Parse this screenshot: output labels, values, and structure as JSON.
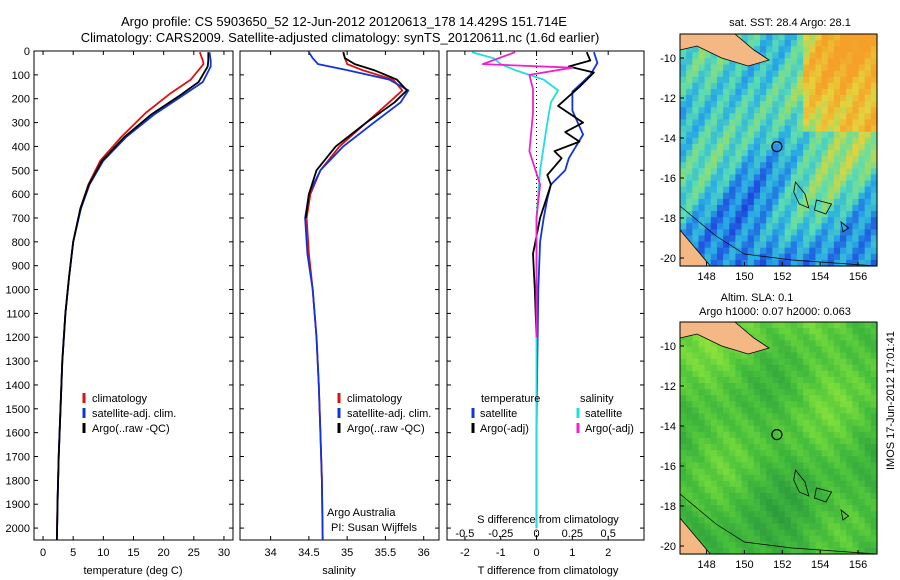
{
  "header": {
    "line1": "Argo profile: CS 5903650_52 12-Jun-2012 20120613_178 14.429S 151.714E",
    "line2": "Climatology: CARS2009. Satellite-adjusted climatology: synTS_20120611.nc (1.6d earlier)"
  },
  "colors": {
    "climatology": "#dd1111",
    "satellite": "#1133dd",
    "argo": "#000000",
    "salinity_satellite": "#22dddd",
    "salinity_argo": "#ee22cc"
  },
  "chart_data": [
    {
      "type": "line",
      "name": "temperature-profile",
      "xlabel": "temperature (deg C)",
      "ylabel": "",
      "xlim": [
        -1.5,
        31.5
      ],
      "ylim": [
        2050,
        0
      ],
      "xticks": [
        0,
        5,
        10,
        15,
        20,
        25,
        30
      ],
      "yticks": [
        0,
        100,
        200,
        300,
        400,
        500,
        600,
        700,
        800,
        900,
        1000,
        1100,
        1200,
        1300,
        1400,
        1500,
        1600,
        1700,
        1800,
        1900,
        2000
      ],
      "legend_position": "lower-left",
      "series": [
        {
          "name": "climatology",
          "color": "#dd1111",
          "x": [
            26.0,
            26.5,
            26.6,
            24.5,
            21.0,
            17.0,
            13.0,
            9.5,
            7.5,
            6.2,
            5.0,
            4.3,
            3.7,
            3.2,
            2.9,
            2.6,
            2.4,
            2.3
          ],
          "y": [
            5,
            40,
            55,
            120,
            180,
            260,
            360,
            460,
            560,
            660,
            800,
            950,
            1100,
            1300,
            1500,
            1700,
            1900,
            2050
          ]
        },
        {
          "name": "satellite-adj. clim.",
          "color": "#1133dd",
          "x": [
            27.6,
            27.8,
            27.8,
            26.5,
            23.0,
            18.5,
            13.8,
            10.0,
            7.7,
            6.3,
            5.0,
            4.3,
            3.7,
            3.2,
            2.9,
            2.6,
            2.4,
            2.3
          ],
          "y": [
            5,
            40,
            65,
            130,
            190,
            265,
            360,
            460,
            560,
            660,
            800,
            950,
            1100,
            1300,
            1500,
            1700,
            1900,
            2050
          ]
        },
        {
          "name": "Argo(..raw -QC)",
          "color": "#000000",
          "x": [
            27.4,
            27.4,
            27.3,
            25.8,
            22.5,
            18.0,
            13.5,
            9.8,
            7.6,
            6.2,
            5.0,
            4.3,
            3.7,
            3.2,
            2.9,
            2.6,
            2.4,
            2.3
          ],
          "y": [
            5,
            40,
            65,
            130,
            190,
            265,
            360,
            460,
            560,
            660,
            800,
            950,
            1100,
            1300,
            1500,
            1700,
            1900,
            2050
          ]
        }
      ],
      "legend": [
        "climatology",
        "satellite-adj. clim.",
        "Argo(..raw -QC)"
      ]
    },
    {
      "type": "line",
      "name": "salinity-profile",
      "xlabel": "salinity",
      "xlim": [
        33.6,
        36.2
      ],
      "ylim": [
        2050,
        0
      ],
      "xticks": [
        34,
        34.5,
        35,
        35.5,
        36
      ],
      "legend_position": "lower-right",
      "annotations": [
        "Argo Australia",
        "PI: Susan Wijffels"
      ],
      "series": [
        {
          "name": "climatology",
          "color": "#dd1111",
          "x": [
            34.95,
            34.97,
            35.0,
            35.2,
            35.6,
            35.72,
            35.55,
            35.25,
            34.9,
            34.65,
            34.52,
            34.47,
            34.5,
            34.55,
            34.6,
            34.63,
            34.65,
            34.67,
            34.68
          ],
          "y": [
            5,
            30,
            55,
            80,
            120,
            165,
            215,
            300,
            400,
            500,
            600,
            700,
            850,
            1000,
            1200,
            1400,
            1600,
            1800,
            2050
          ]
        },
        {
          "name": "satellite-adj. clim.",
          "color": "#1133dd",
          "x": [
            34.5,
            34.55,
            34.62,
            35.0,
            35.55,
            35.8,
            35.7,
            35.35,
            34.95,
            34.65,
            34.5,
            34.45,
            34.48,
            34.55,
            34.6,
            34.63,
            34.65,
            34.67,
            34.68
          ],
          "y": [
            5,
            30,
            55,
            80,
            120,
            165,
            215,
            300,
            400,
            500,
            600,
            700,
            850,
            1000,
            1200,
            1400,
            1600,
            1800,
            2050
          ]
        },
        {
          "name": "Argo(..raw -QC)",
          "color": "#000000",
          "x": [
            34.95,
            34.97,
            35.1,
            35.35,
            35.65,
            35.78,
            35.62,
            35.25,
            34.85,
            34.6,
            34.5,
            34.46
          ],
          "y": [
            5,
            30,
            55,
            80,
            120,
            165,
            215,
            300,
            400,
            500,
            600,
            700
          ]
        }
      ],
      "legend": [
        "climatology",
        "satellite-adj. clim.",
        "Argo(..raw -QC)"
      ]
    },
    {
      "type": "line",
      "name": "difference-profile",
      "xlabel": "T difference from climatology",
      "xlabel_top": "S difference from climatology",
      "xlim": [
        -2.5,
        3.0
      ],
      "ylim": [
        2050,
        0
      ],
      "xticks": [
        -2,
        -1,
        0,
        1,
        2
      ],
      "xticks_top": [
        "-0.5",
        "-0.25",
        "0",
        "0.25",
        "0.5"
      ],
      "xticks_top_values": [
        -2,
        -1,
        0,
        1,
        2
      ],
      "legend_position": "lower-center",
      "legend_temperature_title": "temperature",
      "legend_salinity_title": "salinity",
      "series": [
        {
          "name": "satellite",
          "group": "temperature",
          "color": "#1133dd",
          "x": [
            1.6,
            1.7,
            1.5,
            1.0,
            1.0,
            1.3,
            0.9,
            0.8,
            0.4,
            0.3,
            0.2,
            0.1,
            0.05,
            0.02,
            0.0,
            0.0
          ],
          "y": [
            5,
            50,
            100,
            170,
            250,
            350,
            450,
            500,
            560,
            620,
            700,
            800,
            1000,
            1300,
            1600,
            2000
          ]
        },
        {
          "name": "Argo(-adj)",
          "group": "temperature",
          "color": "#000000",
          "x": [
            1.4,
            1.5,
            0.9,
            1.6,
            1.2,
            0.6,
            1.3,
            0.8,
            1.2,
            0.5,
            0.7,
            0.3,
            0.4,
            0.1,
            -0.1,
            -0.05,
            0.0
          ],
          "y": [
            5,
            40,
            65,
            90,
            150,
            230,
            300,
            340,
            380,
            420,
            450,
            520,
            560,
            700,
            850,
            1000,
            1200
          ]
        },
        {
          "name": "satellite",
          "group": "salinity",
          "color": "#22dddd",
          "x": [
            -1.8,
            -1.2,
            -1.0,
            -0.6,
            0.2,
            0.6,
            0.4,
            0.3,
            0.1,
            0.0,
            0.0,
            0.0,
            0.0
          ],
          "y": [
            5,
            30,
            55,
            80,
            120,
            165,
            215,
            300,
            500,
            700,
            1000,
            1500,
            2000
          ]
        },
        {
          "name": "Argo(-adj)",
          "group": "salinity",
          "color": "#ee22cc",
          "x": [
            -0.6,
            -1.5,
            1.0,
            -0.2,
            -0.1,
            -0.1,
            -0.2,
            0.1,
            0.0,
            0.0,
            0.0
          ],
          "y": [
            5,
            55,
            70,
            100,
            160,
            260,
            420,
            560,
            700,
            900,
            1200
          ]
        }
      ],
      "legend": [
        "satellite",
        "Argo(-adj)",
        "satellite",
        "Argo(-adj)"
      ]
    },
    {
      "type": "heatmap",
      "name": "sst-map",
      "title": "sat. SST: 28.4 Argo: 28.1",
      "xticks": [
        148,
        150,
        152,
        154,
        156
      ],
      "yticks": [
        -10,
        -12,
        -14,
        -16,
        -18,
        -20
      ],
      "xlim": [
        146.6,
        157.0
      ],
      "ylim": [
        -20.4,
        -8.8
      ],
      "marker_lon": 151.714,
      "marker_lat": -14.429
    },
    {
      "type": "heatmap",
      "name": "sla-map",
      "title_line1": "Altim. SLA: 0.1",
      "title_line2": "Argo h1000: 0.07 h2000: 0.063",
      "xticks": [
        148,
        150,
        152,
        154,
        156
      ],
      "yticks": [
        -10,
        -12,
        -14,
        -16,
        -18,
        -20
      ],
      "xlim": [
        146.6,
        157.0
      ],
      "ylim": [
        -20.4,
        -8.8
      ],
      "marker_lon": 151.714,
      "marker_lat": -14.429
    }
  ],
  "footer": {
    "stamp": "IMOS 17-Jun-2012 17:01:41"
  }
}
